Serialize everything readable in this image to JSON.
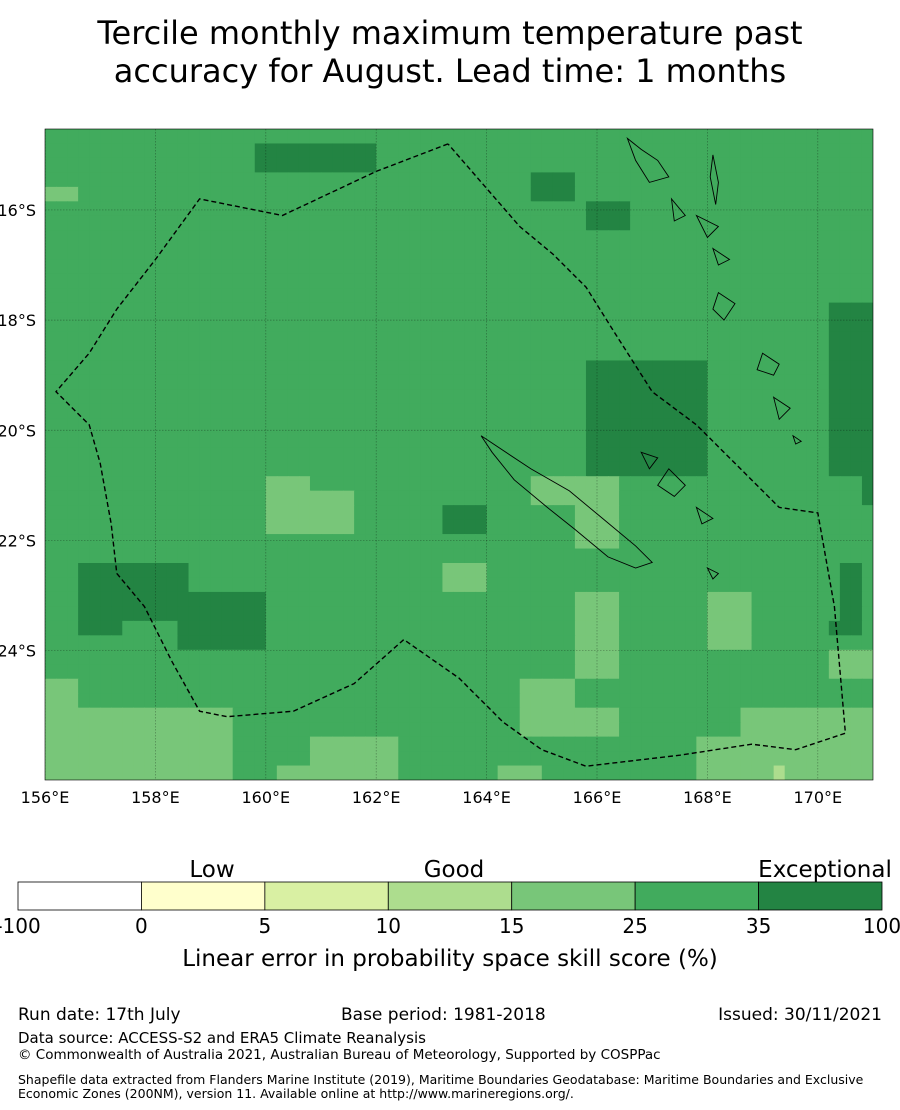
{
  "title_line1": "Tercile monthly maximum temperature past",
  "title_line2": "accuracy for August. Lead time: 1 months",
  "map": {
    "lon_labels": [
      "156°E",
      "158°E",
      "160°E",
      "162°E",
      "164°E",
      "166°E",
      "168°E",
      "170°E"
    ],
    "lat_labels": [
      "16°S",
      "18°S",
      "20°S",
      "22°S",
      "24°S"
    ],
    "cell_colors": {
      "2": "#41ab5d",
      "3": "#78c679",
      "4": "#238443",
      "5": "#addd8e"
    },
    "grid": [
      "222222222222222222222222222222222222222222222222222222222222222222222222222",
      "222222222222222222244444444444222222222222222222222222222222222222222222222",
      "222222222222222222244444444444222222222222222222222222222222222222222222222",
      "222222222222222222222222222222222222222222224444222222222222222222222222222",
      "333222222222222222222222222222222222222222224444222222222222222222222222222",
      "222222222222222222222222222222222222222222222222244442222222222222222222222",
      "222222222222222222222222222222222222222222222222244442222222222222222222222",
      "222222222222222222222222222222222222222222222222222222222222222222222222222",
      "222222222222222222222222222222222222222222222222222222222222222222222222222",
      "222222222222222222222222222222222222222222222222222222222222222222222222222",
      "222222222222222222222222222222222222222222222222222222222222222222222222222",
      "222222222222222222222222222222222222222222222222222222222222222222222222222",
      "222222222222222222222222222222222222222222222222222222222222222222222224444",
      "222222222222222222222222222222222222222222222222222222222222222222222224444",
      "222222222222222222222222222222222222222222222222222222222222222222222224444",
      "222222222222222222222222222222222222222222222222222222222222222222222224444",
      "222222222222222222222222222222222222222222222222244444444444222222222224444",
      "222222222222222222222222222222222222222222222222244444444444222222222224444",
      "222222222222222222222222222222222222222222222222244444444444222222222224444",
      "222222222222222222222222222222222222222222222222244444444444222222222224444",
      "222222222222222222222222222222222222222222222222244444444444222222222224444",
      "222222222222222222222222222222222222222222222222244444444444222222222224444",
      "222222222222222222222222222222222222222222222222244444444444222222222224444",
      "222222222222222222222222222222222222222222222222244444444444222222222224444",
      "222222222222222222223333222222222222222222223333333322222222222222222222224",
      "222222222222222222223333333322222222222222223333333322222222222222222222224",
      "222222222222222222223333333322222222444422222222333322222222222222222222222",
      "222222222222222222223333333322222222444422222222333322222222222222222222222",
      "222222222222222222222222222222222222222222222222333322222222222222222222222",
      "222222222222222222222222222222222222222222222222222222222222222222222222222",
      "222444444444422222222222222222222222333322222222222222222222222222222222442",
      "222444444444422222222222222222222222333322222222222222222222222222222222442",
      "222444444444444444442222222222222222222222222222333322222222333322222222442",
      "222444444444444444442222222222222222222222222222333322222222333322222222442",
      "222444422222444444442222222222222222222222222222333322222222333322222224442",
      "222222222222444444442222222222222222222222222222333322222222333322222222222",
      "222222222222222222222222222222222222222222222222333322222222222222222223333",
      "222222222222222222222222222222222222222222222222333322222222222222222223333",
      "333222222222222222222222222222222222222222233333222222222222222222222222222",
      "333222222222222222222222222222222222222222233333222222222222222222222222222",
      "333333333333333332222222222222222222222222233333333322222222222333333333333",
      "333333333333333332222222222222222222222222233333333322222222222333333333333",
      "333333333333333332222222333333332222222222222222222222222223333333333333333",
      "333333333333333332222222333333332222222222222222222222222223333333333333333",
      "333333333333333332222333333333332222222223333222222222222223333333533333333"
    ],
    "eez_boundary": [
      [
        163.3,
        -14.8
      ],
      [
        162.0,
        -15.3
      ],
      [
        160.3,
        -16.1
      ],
      [
        158.8,
        -15.8
      ],
      [
        158.0,
        -16.9
      ],
      [
        157.3,
        -17.8
      ],
      [
        156.8,
        -18.6
      ],
      [
        156.2,
        -19.3
      ],
      [
        156.8,
        -19.9
      ],
      [
        157.0,
        -20.6
      ],
      [
        157.2,
        -21.7
      ],
      [
        157.3,
        -22.6
      ],
      [
        157.8,
        -23.2
      ],
      [
        158.3,
        -24.2
      ],
      [
        158.8,
        -25.1
      ],
      [
        159.3,
        -25.2
      ],
      [
        160.5,
        -25.1
      ],
      [
        161.6,
        -24.6
      ],
      [
        162.5,
        -23.8
      ],
      [
        163.5,
        -24.5
      ],
      [
        164.3,
        -25.3
      ],
      [
        165.0,
        -25.8
      ],
      [
        165.8,
        -26.1
      ],
      [
        167.5,
        -25.9
      ],
      [
        168.8,
        -25.7
      ],
      [
        169.6,
        -25.8
      ],
      [
        170.5,
        -25.5
      ],
      [
        170.3,
        -23.2
      ],
      [
        170.0,
        -21.5
      ],
      [
        169.3,
        -21.4
      ],
      [
        168.6,
        -20.7
      ],
      [
        167.8,
        -19.9
      ],
      [
        167.0,
        -19.3
      ],
      [
        166.3,
        -18.2
      ],
      [
        165.8,
        -17.4
      ],
      [
        165.2,
        -16.8
      ],
      [
        164.6,
        -16.3
      ],
      [
        163.3,
        -14.8
      ]
    ],
    "islands": [
      [
        [
          163.9,
          -20.1
        ],
        [
          164.8,
          -20.7
        ],
        [
          165.5,
          -21.1
        ],
        [
          166.1,
          -21.6
        ],
        [
          166.7,
          -22.1
        ],
        [
          167.0,
          -22.4
        ],
        [
          166.7,
          -22.5
        ],
        [
          166.2,
          -22.3
        ],
        [
          165.6,
          -21.8
        ],
        [
          165.1,
          -21.4
        ],
        [
          164.5,
          -20.9
        ],
        [
          164.1,
          -20.4
        ]
      ],
      [
        [
          166.55,
          -14.7
        ],
        [
          166.8,
          -14.9
        ],
        [
          167.1,
          -15.1
        ],
        [
          167.3,
          -15.4
        ],
        [
          166.95,
          -15.5
        ],
        [
          166.7,
          -15.1
        ]
      ],
      [
        [
          168.1,
          -15.0
        ],
        [
          168.2,
          -15.5
        ],
        [
          168.15,
          -15.9
        ],
        [
          168.05,
          -15.4
        ]
      ],
      [
        [
          167.35,
          -15.8
        ],
        [
          167.6,
          -16.1
        ],
        [
          167.4,
          -16.2
        ]
      ],
      [
        [
          167.8,
          -16.1
        ],
        [
          168.2,
          -16.3
        ],
        [
          168.0,
          -16.5
        ]
      ],
      [
        [
          168.1,
          -16.7
        ],
        [
          168.4,
          -16.9
        ],
        [
          168.2,
          -17.0
        ]
      ],
      [
        [
          168.2,
          -17.5
        ],
        [
          168.5,
          -17.7
        ],
        [
          168.3,
          -18.0
        ],
        [
          168.1,
          -17.8
        ]
      ],
      [
        [
          169.0,
          -18.6
        ],
        [
          169.3,
          -18.8
        ],
        [
          169.2,
          -19.0
        ],
        [
          168.9,
          -18.9
        ]
      ],
      [
        [
          169.2,
          -19.4
        ],
        [
          169.5,
          -19.6
        ],
        [
          169.3,
          -19.8
        ]
      ],
      [
        [
          167.3,
          -20.7
        ],
        [
          167.6,
          -21.0
        ],
        [
          167.4,
          -21.2
        ],
        [
          167.1,
          -21.0
        ]
      ],
      [
        [
          167.8,
          -21.4
        ],
        [
          168.1,
          -21.6
        ],
        [
          167.9,
          -21.7
        ]
      ],
      [
        [
          166.8,
          -20.4
        ],
        [
          167.1,
          -20.5
        ],
        [
          166.95,
          -20.7
        ]
      ],
      [
        [
          168.0,
          -22.5
        ],
        [
          168.2,
          -22.6
        ],
        [
          168.1,
          -22.7
        ]
      ],
      [
        [
          169.55,
          -20.1
        ],
        [
          169.7,
          -20.2
        ],
        [
          169.6,
          -20.25
        ]
      ]
    ]
  },
  "colorbar": {
    "category_labels": [
      "Low",
      "Good",
      "Exceptional"
    ],
    "tick_labels": [
      "-100",
      "0",
      "5",
      "10",
      "15",
      "25",
      "35",
      "100"
    ],
    "colors": [
      "#ffffff",
      "#ffffcc",
      "#d9f0a3",
      "#addd8e",
      "#78c679",
      "#41ab5d",
      "#238443"
    ],
    "label": "Linear error in probability space skill score (%)"
  },
  "footer": {
    "run_date": "Run date: 17th July",
    "base_period": "Base period: 1981-2018",
    "issued": "Issued: 30/11/2021",
    "data_source": "Data source: ACCESS-S2 and ERA5 Climate Reanalysis",
    "copyright": "© Commonwealth of Australia 2021, Australian Bureau of Meteorology, Supported by COSPPac",
    "shapefile": "Shapefile data extracted from Flanders Marine Institute (2019), Maritime Boundaries Geodatabase: Maritime Boundaries and Exclusive Economic Zones (200NM), version 11. Available online at http://www.marineregions.org/."
  }
}
